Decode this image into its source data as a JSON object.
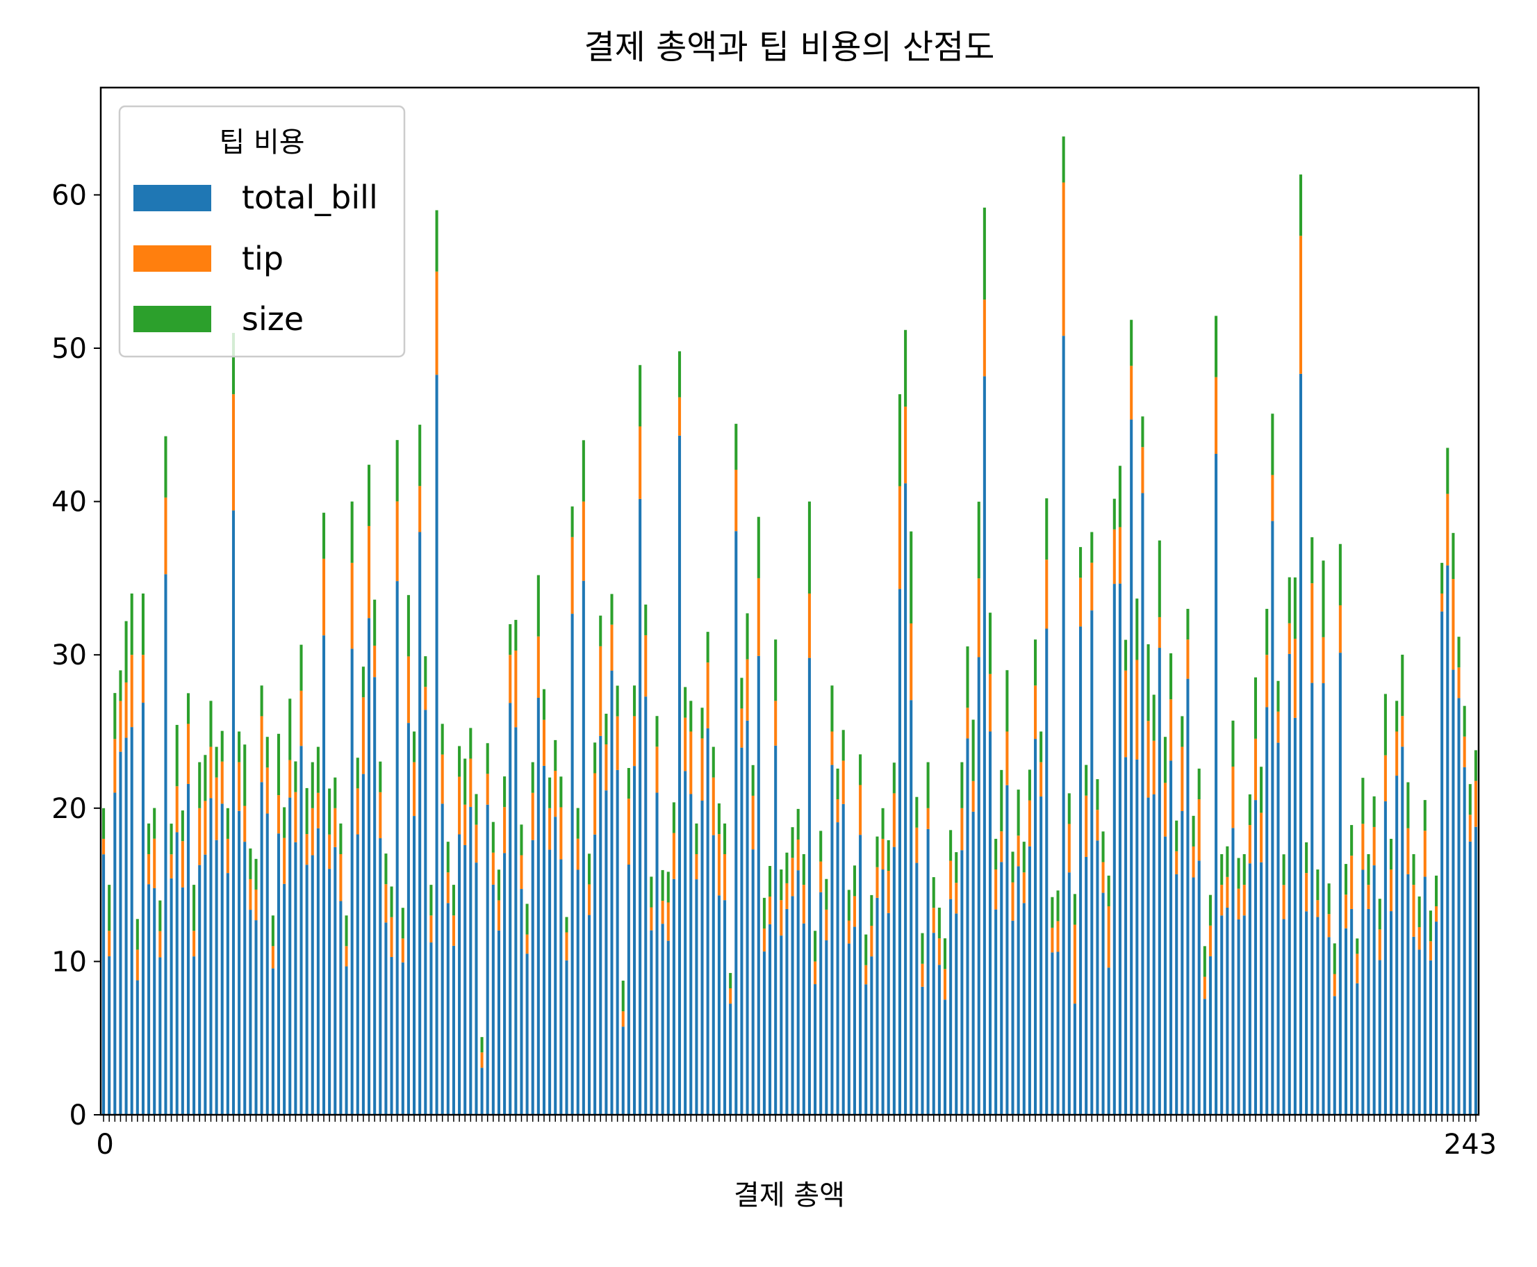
{
  "chart_data": {
    "type": "bar",
    "stacked": true,
    "title": "결제 총액과 팁 비용의 산점도",
    "xlabel": "결제 총액",
    "ylabel": "",
    "ylim": [
      0,
      67
    ],
    "y_ticks": [
      0,
      10,
      20,
      30,
      40,
      50,
      60
    ],
    "x_ticks_visible": [
      "0",
      "243"
    ],
    "grid": false,
    "legend": {
      "title": "팁 비용",
      "placement": "top-left"
    },
    "series": [
      {
        "name": "total_bill",
        "color": "#1f77b4",
        "values": [
          16.99,
          10.34,
          21.01,
          23.68,
          24.59,
          25.29,
          8.77,
          26.88,
          15.04,
          14.78,
          10.27,
          35.26,
          15.42,
          18.43,
          14.83,
          21.58,
          10.33,
          16.29,
          16.97,
          20.65,
          17.92,
          20.29,
          15.77,
          39.42,
          19.82,
          17.81,
          13.37,
          12.69,
          21.7,
          19.65,
          9.55,
          18.35,
          15.06,
          20.69,
          17.78,
          24.06,
          16.31,
          16.93,
          18.69,
          31.27,
          16.04,
          17.46,
          13.94,
          9.68,
          30.4,
          18.29,
          22.23,
          32.4,
          28.55,
          18.04,
          12.54,
          10.29,
          34.81,
          9.94,
          25.56,
          19.49,
          38.01,
          26.41,
          11.24,
          48.27,
          20.29,
          13.81,
          11.02,
          18.29,
          17.59,
          20.08,
          16.45,
          3.07,
          20.23,
          15.01,
          12.02,
          17.07,
          26.86,
          25.28,
          14.73,
          10.51,
          17.92,
          27.2,
          22.76,
          17.29,
          19.44,
          16.66,
          10.07,
          32.68,
          15.98,
          34.83,
          13.03,
          18.28,
          24.71,
          21.16,
          28.97,
          22.49,
          5.75,
          16.32,
          22.75,
          40.17,
          27.28,
          12.03,
          21.01,
          12.46,
          11.35,
          15.38,
          44.3,
          22.42,
          20.92,
          15.36,
          20.49,
          25.21,
          18.24,
          14.31,
          14.0,
          7.25,
          38.07,
          23.95,
          25.71,
          17.31,
          29.93,
          10.65,
          12.43,
          24.08,
          11.69,
          13.42,
          14.26,
          15.95,
          12.48,
          29.8,
          8.52,
          14.52,
          11.38,
          22.82,
          19.08,
          20.27,
          11.17,
          12.26,
          18.26,
          8.51,
          10.33,
          14.15,
          16.0,
          13.16,
          17.47,
          34.3,
          41.19,
          27.05,
          16.43,
          8.35,
          18.64,
          11.87,
          9.78,
          7.51,
          14.07,
          13.13,
          17.26,
          24.55,
          19.77,
          29.85,
          48.17,
          25.0,
          13.39,
          16.49,
          21.5,
          12.66,
          16.21,
          13.81,
          17.51,
          24.52,
          20.76,
          31.71,
          10.59,
          10.63,
          50.81,
          15.81,
          7.25,
          31.85,
          16.82,
          32.9,
          17.89,
          14.48,
          9.6,
          34.63,
          34.65,
          23.33,
          45.35,
          23.17,
          40.55,
          20.69,
          20.9,
          30.46,
          18.15,
          23.1,
          15.69,
          19.81,
          28.44,
          15.48,
          16.58,
          7.56,
          10.34,
          43.11,
          13.0,
          13.51,
          18.71,
          12.74,
          13.0,
          16.4,
          20.53,
          16.47,
          26.59,
          38.73,
          24.27,
          12.76,
          30.06,
          25.89,
          48.33,
          13.27,
          28.17,
          12.9,
          28.15,
          11.59,
          7.74,
          30.14,
          12.16,
          13.42,
          8.58,
          15.98,
          13.42,
          16.27,
          10.09,
          20.45,
          13.28,
          22.12,
          24.01,
          15.69,
          11.61,
          10.77,
          15.53,
          10.07,
          12.6,
          32.83,
          35.83,
          29.03,
          27.18,
          22.67,
          17.82,
          18.78
        ]
      },
      {
        "name": "tip",
        "color": "#ff7f0e",
        "values": [
          1.01,
          1.66,
          3.5,
          3.31,
          3.61,
          4.71,
          2.0,
          3.12,
          1.96,
          3.23,
          1.71,
          5.0,
          1.57,
          3.0,
          3.02,
          3.92,
          1.67,
          3.71,
          3.5,
          3.35,
          4.08,
          2.75,
          2.23,
          7.58,
          3.18,
          2.34,
          2.0,
          2.0,
          4.3,
          3.0,
          1.45,
          2.5,
          3.0,
          2.45,
          3.27,
          3.6,
          2.0,
          3.07,
          2.31,
          5.0,
          2.24,
          2.54,
          3.06,
          1.32,
          5.6,
          3.0,
          5.0,
          6.0,
          2.05,
          3.0,
          2.5,
          2.6,
          5.2,
          1.56,
          4.34,
          3.51,
          3.0,
          1.5,
          1.76,
          6.73,
          3.21,
          2.0,
          1.98,
          3.76,
          2.64,
          3.15,
          2.47,
          1.0,
          2.01,
          2.09,
          1.97,
          3.0,
          3.14,
          5.0,
          2.2,
          1.25,
          3.08,
          4.0,
          3.0,
          2.71,
          3.0,
          3.4,
          1.83,
          5.0,
          2.03,
          5.17,
          2.0,
          4.0,
          5.85,
          3.0,
          3.0,
          3.5,
          1.0,
          4.3,
          3.25,
          4.73,
          4.0,
          1.5,
          3.0,
          1.5,
          2.5,
          3.0,
          2.5,
          3.48,
          4.08,
          1.64,
          4.06,
          4.29,
          3.76,
          4.0,
          3.0,
          1.0,
          4.0,
          2.55,
          4.0,
          3.5,
          5.07,
          1.5,
          1.8,
          2.92,
          2.31,
          1.68,
          2.5,
          2.0,
          2.52,
          4.2,
          1.48,
          2.0,
          2.0,
          2.18,
          1.5,
          2.83,
          1.5,
          2.0,
          3.25,
          1.25,
          2.0,
          2.0,
          2.0,
          2.75,
          3.5,
          6.7,
          5.0,
          5.0,
          2.3,
          1.5,
          1.36,
          1.63,
          1.73,
          2.0,
          2.5,
          2.0,
          2.74,
          2.0,
          2.0,
          5.14,
          5.0,
          3.75,
          2.61,
          2.0,
          3.5,
          2.5,
          2.0,
          2.0,
          3.0,
          3.48,
          2.24,
          4.5,
          1.61,
          2.0,
          10.0,
          3.16,
          5.15,
          3.18,
          4.0,
          3.11,
          2.0,
          2.0,
          4.0,
          3.55,
          3.68,
          5.65,
          3.5,
          6.5,
          3.0,
          5.0,
          3.5,
          2.0,
          3.5,
          4.0,
          1.5,
          4.19,
          2.56,
          2.02,
          4.0,
          1.44,
          2.0,
          5.0,
          2.0,
          2.0,
          4.0,
          2.01,
          2.0,
          2.5,
          4.0,
          3.23,
          3.41,
          3.0,
          2.03,
          2.23,
          2.0,
          5.16,
          9.0,
          2.5,
          6.5,
          1.1,
          3.0,
          1.5,
          1.44,
          3.09,
          2.2,
          3.48,
          1.92,
          3.0,
          1.58,
          2.5,
          2.0,
          3.0,
          2.72,
          2.88,
          2.0,
          3.0,
          3.39,
          1.47,
          3.0,
          1.25,
          1.0,
          1.17,
          4.67,
          5.92,
          2.0,
          2.0,
          1.75,
          3.0
        ]
      },
      {
        "name": "size",
        "color": "#2ca02c",
        "values": [
          2,
          3,
          3,
          2,
          4,
          4,
          2,
          4,
          2,
          2,
          2,
          4,
          2,
          4,
          2,
          2,
          3,
          3,
          3,
          3,
          2,
          2,
          2,
          4,
          2,
          4,
          2,
          2,
          2,
          2,
          2,
          4,
          2,
          4,
          2,
          3,
          3,
          3,
          3,
          3,
          3,
          2,
          2,
          2,
          4,
          2,
          2,
          4,
          3,
          2,
          2,
          2,
          4,
          2,
          4,
          2,
          4,
          2,
          2,
          4,
          2,
          2,
          2,
          2,
          3,
          2,
          2,
          1,
          2,
          2,
          2,
          2,
          2,
          2,
          2,
          2,
          2,
          4,
          2,
          2,
          2,
          2,
          1,
          2,
          2,
          4,
          2,
          2,
          2,
          2,
          2,
          2,
          2,
          2,
          2,
          4,
          2,
          2,
          2,
          2,
          2,
          2,
          3,
          2,
          2,
          2,
          2,
          2,
          2,
          2,
          2,
          1,
          3,
          2,
          3,
          2,
          4,
          2,
          2,
          4,
          2,
          2,
          2,
          2,
          2,
          6,
          2,
          2,
          2,
          3,
          2,
          2,
          2,
          2,
          2,
          2,
          2,
          2,
          2,
          2,
          2,
          6,
          5,
          6,
          2,
          2,
          3,
          2,
          2,
          2,
          2,
          2,
          3,
          4,
          4,
          5,
          6,
          4,
          2,
          4,
          4,
          2,
          3,
          2,
          2,
          3,
          2,
          4,
          2,
          2,
          3,
          2,
          2,
          2,
          2,
          2,
          2,
          2,
          2,
          2,
          4,
          2,
          3,
          4,
          2,
          5,
          3,
          5,
          3,
          3,
          2,
          2,
          2,
          2,
          2,
          2,
          2,
          4,
          2,
          2,
          3,
          2,
          2,
          2,
          4,
          3,
          3,
          4,
          2,
          2,
          3,
          4,
          4,
          2,
          3,
          2,
          5,
          2,
          2,
          4,
          2,
          2,
          1,
          3,
          2,
          2,
          2,
          4,
          2,
          2,
          4,
          3,
          2,
          2,
          2,
          2,
          2,
          2,
          3,
          3,
          2,
          2,
          2,
          2
        ]
      }
    ]
  }
}
